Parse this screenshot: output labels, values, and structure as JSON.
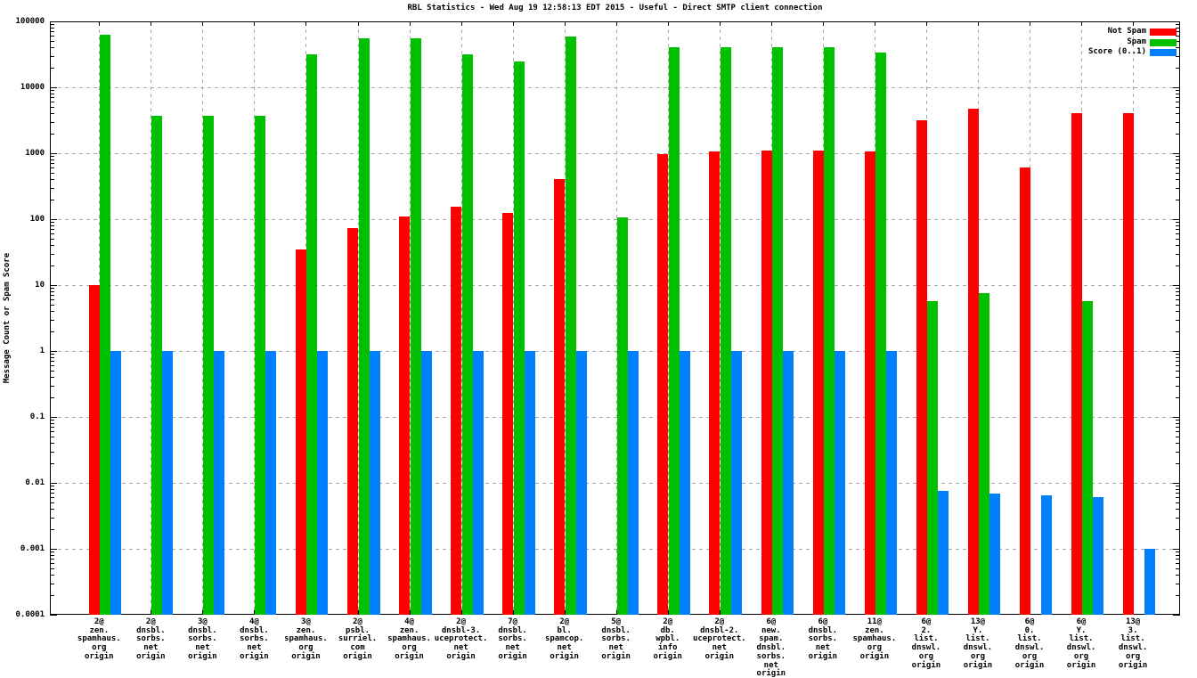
{
  "title": "RBL Statistics - Wed Aug 19 12:58:13 EDT 2015 - Useful - Direct SMTP client connection",
  "ylabel": "Message Count or Spam Score",
  "legend": {
    "position": "top-right",
    "items": [
      {
        "label": "Not Spam",
        "color": "#ff0000"
      },
      {
        "label": "Spam",
        "color": "#00c000"
      },
      {
        "label": "Score (0..1)",
        "color": "#0080ff"
      }
    ]
  },
  "chart_data": {
    "type": "bar",
    "yscale": "log",
    "ylim": [
      0.0001,
      100000
    ],
    "grid": true,
    "y_tick_labels": [
      "100000",
      "10000",
      "1000",
      "100",
      "10",
      "1",
      "0.1",
      "0.01",
      "0.001",
      "0.0001"
    ],
    "categories": [
      [
        "2@",
        "zen.",
        "spamhaus.",
        "org",
        "origin"
      ],
      [
        "2@",
        "dnsbl.",
        "sorbs.",
        "net",
        "origin"
      ],
      [
        "3@",
        "dnsbl.",
        "sorbs.",
        "net",
        "origin"
      ],
      [
        "4@",
        "dnsbl.",
        "sorbs.",
        "net",
        "origin"
      ],
      [
        "3@",
        "zen.",
        "spamhaus.",
        "org",
        "origin"
      ],
      [
        "2@",
        "psbl.",
        "surriel.",
        "com",
        "origin"
      ],
      [
        "4@",
        "zen.",
        "spamhaus.",
        "org",
        "origin"
      ],
      [
        "2@",
        "dnsbl-3.",
        "uceprotect.",
        "net",
        "origin"
      ],
      [
        "7@",
        "dnsbl.",
        "sorbs.",
        "net",
        "origin"
      ],
      [
        "2@",
        "bl.",
        "spamcop.",
        "net",
        "origin"
      ],
      [
        "5@",
        "dnsbl.",
        "sorbs.",
        "net",
        "origin"
      ],
      [
        "2@",
        "db.",
        "wpbl.",
        "info",
        "origin"
      ],
      [
        "2@",
        "dnsbl-2.",
        "uceprotect.",
        "net",
        "origin"
      ],
      [
        "6@",
        "new.",
        "spam.",
        "dnsbl.",
        "sorbs.",
        "net",
        "origin"
      ],
      [
        "6@",
        "dnsbl.",
        "sorbs.",
        "net",
        "origin"
      ],
      [
        "11@",
        "zen.",
        "spamhaus.",
        "org",
        "origin"
      ],
      [
        "6@",
        "2.",
        "list.",
        "dnswl.",
        "org",
        "origin"
      ],
      [
        "13@",
        "Y.",
        "list.",
        "dnswl.",
        "org",
        "origin"
      ],
      [
        "6@",
        "0.",
        "list.",
        "dnswl.",
        "org",
        "origin"
      ],
      [
        "6@",
        "Y.",
        "list.",
        "dnswl.",
        "org",
        "origin"
      ],
      [
        "13@",
        "3.",
        "list.",
        "dnswl.",
        "org",
        "origin"
      ]
    ],
    "series": [
      {
        "name": "Not Spam",
        "color": "#ff0000",
        "values": [
          10,
          0,
          0,
          0,
          35,
          73,
          110,
          155,
          125,
          400,
          0,
          980,
          1080,
          1100,
          1100,
          1060,
          3200,
          4800,
          600,
          4000,
          4050
        ]
      },
      {
        "name": "Spam",
        "color": "#00c000",
        "values": [
          62000,
          3650,
          3650,
          3650,
          32000,
          56000,
          56000,
          32000,
          25000,
          59000,
          108,
          40000,
          41000,
          40000,
          40000,
          33500,
          5.7,
          7.6,
          0,
          5.8,
          0
        ]
      },
      {
        "name": "Score (0..1)",
        "color": "#0080ff",
        "values": [
          1,
          1,
          1,
          1,
          1,
          1,
          1,
          1,
          1,
          1,
          1,
          1,
          1,
          1,
          1,
          1,
          0.0075,
          0.0068,
          0.0065,
          0.006,
          0.001
        ]
      }
    ]
  }
}
